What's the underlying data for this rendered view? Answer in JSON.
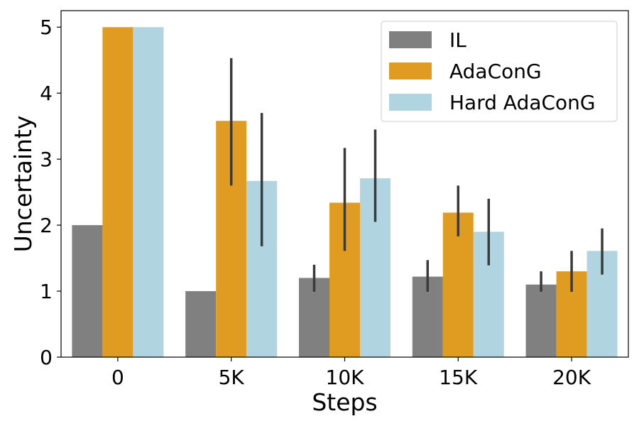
{
  "chart_data": {
    "type": "bar",
    "title": "",
    "xlabel": "Steps",
    "ylabel": "Uncertainty",
    "categories": [
      "0",
      "5K",
      "10K",
      "15K",
      "20K"
    ],
    "ylim": [
      0,
      5.25
    ],
    "yticks": [
      0,
      1,
      2,
      3,
      4,
      5
    ],
    "grid": false,
    "legend_position": "top-right",
    "series": [
      {
        "name": "IL",
        "color": "#808080",
        "values": [
          2.0,
          1.0,
          1.2,
          1.22,
          1.1
        ],
        "err_low": [
          null,
          null,
          0.99,
          0.99,
          0.99
        ],
        "err_high": [
          null,
          null,
          1.4,
          1.47,
          1.3
        ]
      },
      {
        "name": "AdaConG",
        "color": "#e09c20",
        "values": [
          5.0,
          3.58,
          2.34,
          2.19,
          1.3
        ],
        "err_low": [
          null,
          2.6,
          1.61,
          1.83,
          0.99
        ],
        "err_high": [
          null,
          4.53,
          3.17,
          2.6,
          1.61
        ]
      },
      {
        "name": "Hard AdaConG",
        "color": "#b1d5e0",
        "values": [
          5.0,
          2.67,
          2.71,
          1.9,
          1.61
        ],
        "err_low": [
          null,
          1.68,
          2.05,
          1.39,
          1.25
        ],
        "err_high": [
          null,
          3.7,
          3.45,
          2.4,
          1.95
        ]
      }
    ]
  }
}
